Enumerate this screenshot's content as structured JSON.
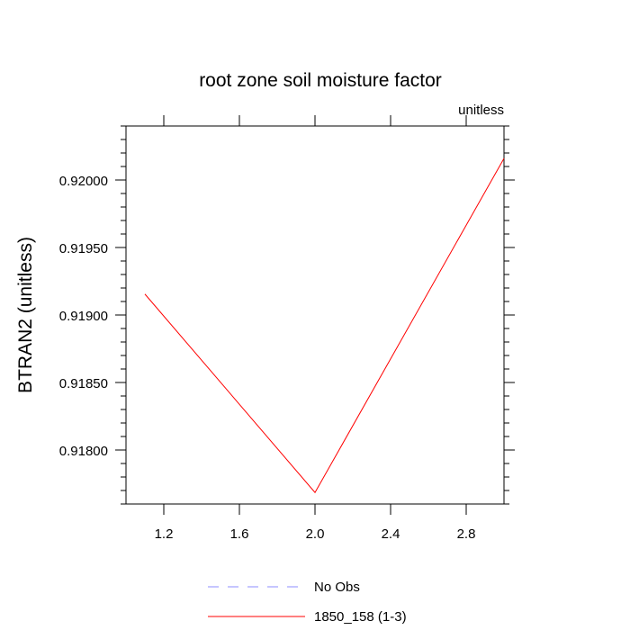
{
  "chart_data": {
    "type": "line",
    "title": "root zone soil moisture factor",
    "units_label": "unitless",
    "ylabel": "BTRAN2  (unitless)",
    "xlabel": "",
    "xlim": [
      1.0,
      3.0
    ],
    "ylim": [
      0.9176,
      0.9204
    ],
    "x_ticks": [
      1.2,
      1.6,
      2.0,
      2.4,
      2.8
    ],
    "x_tick_labels": [
      "1.2",
      "1.6",
      "2.0",
      "2.4",
      "2.8"
    ],
    "y_ticks": [
      0.918,
      0.9185,
      0.919,
      0.9195,
      0.92
    ],
    "y_tick_labels": [
      "0.91800",
      "0.91850",
      "0.91900",
      "0.91950",
      "0.92000"
    ],
    "grid": false,
    "legend_position": "bottom",
    "series": [
      {
        "name": "1850_158 (1-3)",
        "color": "#ff0000",
        "dash": "solid",
        "x": [
          1.1,
          2.0,
          3.0
        ],
        "y": [
          0.919155,
          0.917685,
          0.92016
        ]
      }
    ],
    "legend": [
      {
        "label": "No Obs",
        "color": "#8c8cff",
        "dash": "dashed"
      },
      {
        "label": "1850_158 (1-3)",
        "color": "#ff0000",
        "dash": "solid"
      }
    ]
  }
}
